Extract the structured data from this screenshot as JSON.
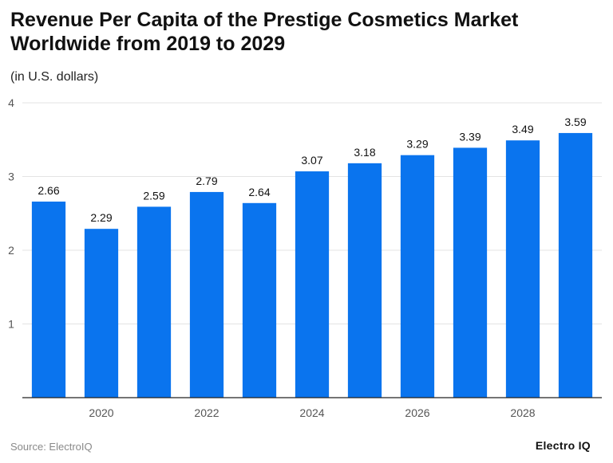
{
  "title": "Revenue Per Capita of the Prestige Cosmetics Market Worldwide from 2019 to 2029",
  "subtitle": "(in U.S. dollars)",
  "source": "Source: ElectroIQ",
  "brand": "Electro IQ",
  "colors": {
    "bar": "#0A74EE",
    "grid": "#e3e3e3",
    "axis": "#222222",
    "tick_text": "#555555",
    "label_text": "#111111"
  },
  "chart_data": {
    "type": "bar",
    "categories": [
      "2019",
      "2020",
      "2021",
      "2022",
      "2023",
      "2024",
      "2025",
      "2026",
      "2027",
      "2028",
      "2029"
    ],
    "values": [
      2.66,
      2.29,
      2.59,
      2.79,
      2.64,
      3.07,
      3.18,
      3.29,
      3.39,
      3.49,
      3.59
    ],
    "data_labels": [
      "2.66",
      "2.29",
      "2.59",
      "2.79",
      "2.64",
      "3.07",
      "3.18",
      "3.29",
      "3.39",
      "3.49",
      "3.59"
    ],
    "x_tick_labels": [
      "2020",
      "2022",
      "2024",
      "2026",
      "2028"
    ],
    "y_ticks": [
      "1",
      "2",
      "3",
      "4"
    ],
    "ylim": [
      0,
      4
    ],
    "grid": true,
    "legend": false
  }
}
